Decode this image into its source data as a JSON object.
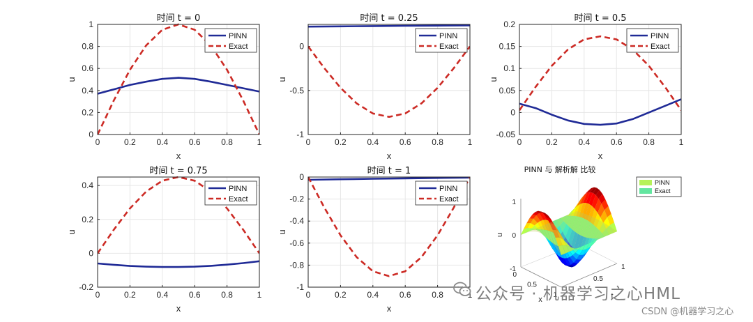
{
  "chart_data": [
    {
      "type": "line",
      "title": "时间 t = 0",
      "xlabel": "x",
      "ylabel": "u",
      "xlim": [
        0,
        1
      ],
      "ylim": [
        0,
        1
      ],
      "xticks": [
        "0",
        "0.2",
        "0.4",
        "0.6",
        "0.8",
        "1"
      ],
      "yticks": [
        "0",
        "0.2",
        "0.4",
        "0.6",
        "0.8",
        "1"
      ],
      "legend": [
        "PINN",
        "Exact"
      ],
      "legend_position": "top-right",
      "series": [
        {
          "name": "PINN",
          "x": [
            0,
            0.1,
            0.2,
            0.3,
            0.4,
            0.5,
            0.6,
            0.7,
            0.8,
            0.9,
            1
          ],
          "y": [
            0.37,
            0.41,
            0.45,
            0.48,
            0.505,
            0.515,
            0.505,
            0.48,
            0.45,
            0.42,
            0.39
          ]
        },
        {
          "name": "Exact",
          "x": [
            0,
            0.1,
            0.2,
            0.3,
            0.4,
            0.5,
            0.6,
            0.7,
            0.8,
            0.9,
            1
          ],
          "y": [
            0,
            0.309,
            0.588,
            0.809,
            0.951,
            1,
            0.951,
            0.809,
            0.588,
            0.309,
            0
          ]
        }
      ]
    },
    {
      "type": "line",
      "title": "时间 t = 0.25",
      "xlabel": "x",
      "ylabel": "u",
      "xlim": [
        0,
        1
      ],
      "ylim": [
        -1,
        0.25
      ],
      "xticks": [
        "0",
        "0.2",
        "0.4",
        "0.6",
        "0.8",
        "1"
      ],
      "yticks": [
        "-1",
        "-0.5",
        "0"
      ],
      "legend": [
        "PINN",
        "Exact"
      ],
      "legend_position": "top-right",
      "series": [
        {
          "name": "PINN",
          "x": [
            0,
            0.2,
            0.4,
            0.6,
            0.8,
            1
          ],
          "y": [
            0.225,
            0.228,
            0.231,
            0.234,
            0.236,
            0.238
          ]
        },
        {
          "name": "Exact",
          "x": [
            0,
            0.1,
            0.2,
            0.3,
            0.4,
            0.5,
            0.6,
            0.7,
            0.8,
            0.9,
            1
          ],
          "y": [
            0,
            -0.247,
            -0.47,
            -0.647,
            -0.761,
            -0.8,
            -0.761,
            -0.647,
            -0.47,
            -0.247,
            0
          ]
        }
      ]
    },
    {
      "type": "line",
      "title": "时间 t = 0.5",
      "xlabel": "x",
      "ylabel": "u",
      "xlim": [
        0,
        1
      ],
      "ylim": [
        -0.05,
        0.2
      ],
      "xticks": [
        "0",
        "0.2",
        "0.4",
        "0.6",
        "0.8",
        "1"
      ],
      "yticks": [
        "-0.05",
        "0",
        "0.05",
        "0.1",
        "0.15",
        "0.2"
      ],
      "legend": [
        "PINN",
        "Exact"
      ],
      "legend_position": "top-right",
      "series": [
        {
          "name": "PINN",
          "x": [
            0,
            0.1,
            0.2,
            0.3,
            0.4,
            0.5,
            0.6,
            0.7,
            0.8,
            0.9,
            1
          ],
          "y": [
            0.02,
            0.01,
            -0.005,
            -0.018,
            -0.026,
            -0.028,
            -0.025,
            -0.015,
            0,
            0.015,
            0.03
          ]
        },
        {
          "name": "Exact",
          "x": [
            0,
            0.1,
            0.2,
            0.3,
            0.4,
            0.5,
            0.6,
            0.7,
            0.8,
            0.9,
            1
          ],
          "y": [
            0.005,
            0.058,
            0.106,
            0.143,
            0.166,
            0.173,
            0.166,
            0.143,
            0.106,
            0.058,
            0.005
          ]
        }
      ]
    },
    {
      "type": "line",
      "title": "时间 t = 0.75",
      "xlabel": "x",
      "ylabel": "u",
      "xlim": [
        0,
        1
      ],
      "ylim": [
        -0.2,
        0.45
      ],
      "xticks": [
        "0",
        "0.2",
        "0.4",
        "0.6",
        "0.8",
        "1"
      ],
      "yticks": [
        "-0.2",
        "0",
        "0.2",
        "0.4"
      ],
      "legend": [
        "PINN",
        "Exact"
      ],
      "legend_position": "top-right",
      "series": [
        {
          "name": "PINN",
          "x": [
            0,
            0.1,
            0.2,
            0.3,
            0.4,
            0.5,
            0.6,
            0.7,
            0.8,
            0.9,
            1
          ],
          "y": [
            -0.06,
            -0.068,
            -0.075,
            -0.079,
            -0.081,
            -0.081,
            -0.079,
            -0.074,
            -0.067,
            -0.058,
            -0.047
          ]
        },
        {
          "name": "Exact",
          "x": [
            0,
            0.1,
            0.2,
            0.3,
            0.4,
            0.5,
            0.6,
            0.7,
            0.8,
            0.9,
            1
          ],
          "y": [
            0,
            0.139,
            0.265,
            0.364,
            0.428,
            0.45,
            0.428,
            0.364,
            0.265,
            0.139,
            0
          ]
        }
      ]
    },
    {
      "type": "line",
      "title": "时间 t = 1",
      "xlabel": "x",
      "ylabel": "u",
      "xlim": [
        0,
        1
      ],
      "ylim": [
        -1,
        0
      ],
      "xticks": [
        "0",
        "0.2",
        "0.4",
        "0.6",
        "0.8",
        "1"
      ],
      "yticks": [
        "-1",
        "-0.8",
        "-0.6",
        "-0.4",
        "-0.2",
        "0"
      ],
      "legend": [
        "PINN",
        "Exact"
      ],
      "legend_position": "top-right",
      "series": [
        {
          "name": "PINN",
          "x": [
            0,
            0.2,
            0.4,
            0.6,
            0.8,
            1
          ],
          "y": [
            -0.025,
            -0.02,
            -0.016,
            -0.012,
            -0.008,
            -0.005
          ]
        },
        {
          "name": "Exact",
          "x": [
            0,
            0.1,
            0.2,
            0.3,
            0.4,
            0.5,
            0.6,
            0.7,
            0.8,
            0.9,
            1
          ],
          "y": [
            0,
            -0.278,
            -0.529,
            -0.728,
            -0.856,
            -0.9,
            -0.856,
            -0.728,
            -0.529,
            -0.278,
            0
          ]
        }
      ]
    },
    {
      "type": "surface",
      "title": "PINN 与 解析解 比较",
      "xlabel": "x",
      "ylabel": "t",
      "zlabel": "u",
      "zticks": [
        "-1",
        "0",
        "1"
      ],
      "xticks": [
        "0",
        "0.5",
        "1"
      ],
      "yticks": [
        "0.5",
        "1"
      ],
      "legend": [
        "PINN",
        "Exact"
      ],
      "legend_position": "top-right",
      "legend_colors": [
        "#b6f25a",
        "#63e6a0"
      ]
    }
  ],
  "watermark": {
    "channel": "公众号 · 机器学习之心HML",
    "csdn": "CSDN @机器学习之心"
  },
  "colors": {
    "pinn": "#1f2a96",
    "exact": "#cc2a24"
  }
}
